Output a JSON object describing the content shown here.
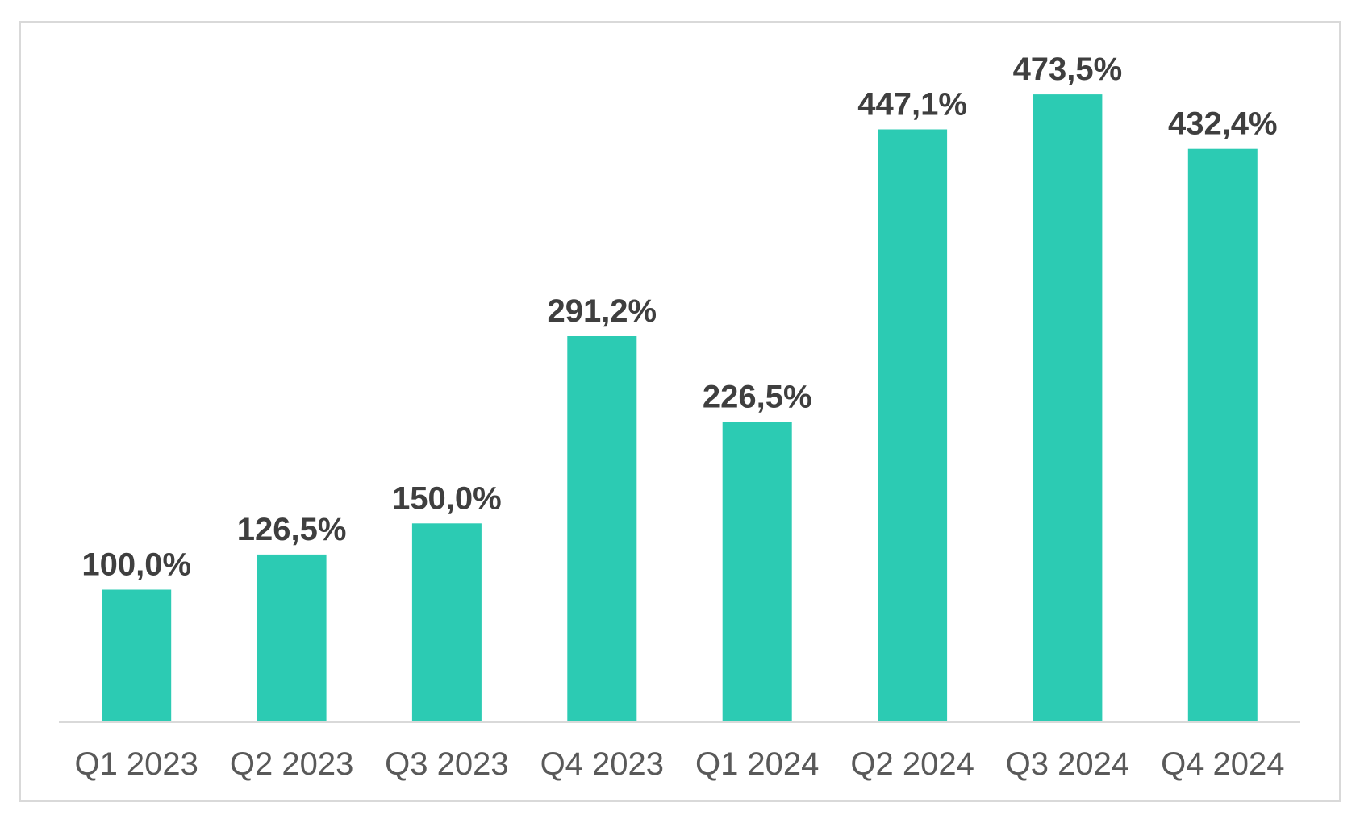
{
  "chart_data": {
    "type": "bar",
    "categories": [
      "Q1 2023",
      "Q2 2023",
      "Q3 2023",
      "Q4 2023",
      "Q1 2024",
      "Q2 2024",
      "Q3 2024",
      "Q4 2024"
    ],
    "values": [
      100.0,
      126.5,
      150.0,
      291.2,
      226.5,
      447.1,
      473.5,
      432.4
    ],
    "value_labels": [
      "100,0%",
      "126,5%",
      "150,0%",
      "291,2%",
      "226,5%",
      "447,1%",
      "473,5%",
      "432,4%"
    ],
    "title": "",
    "xlabel": "",
    "ylabel": "",
    "ylim": [
      0,
      480
    ],
    "grid": false,
    "legend": "none",
    "bar_color": "#2ccbb3",
    "axis_color": "#d9d9d9",
    "label_color": "#3f3f3f",
    "tick_color": "#595959"
  }
}
